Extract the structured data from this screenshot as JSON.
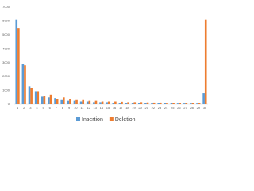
{
  "chart_data": {
    "type": "bar",
    "categories": [
      1,
      2,
      3,
      4,
      5,
      6,
      7,
      8,
      9,
      10,
      11,
      12,
      13,
      14,
      15,
      16,
      17,
      18,
      19,
      20,
      21,
      22,
      23,
      24,
      25,
      26,
      27,
      28,
      29,
      30
    ],
    "series": [
      {
        "name": "Insertion",
        "color": "#5b9bd5",
        "values": [
          6100,
          2900,
          1300,
          950,
          550,
          500,
          450,
          300,
          250,
          250,
          200,
          200,
          150,
          150,
          150,
          100,
          100,
          100,
          100,
          80,
          80,
          80,
          60,
          60,
          60,
          50,
          50,
          50,
          50,
          800
        ]
      },
      {
        "name": "Deletion",
        "color": "#ed7d31",
        "values": [
          5500,
          2800,
          1200,
          950,
          600,
          700,
          350,
          500,
          350,
          300,
          300,
          250,
          250,
          200,
          200,
          200,
          180,
          150,
          150,
          150,
          130,
          120,
          120,
          100,
          100,
          100,
          90,
          80,
          60,
          6100
        ]
      }
    ],
    "ylim": [
      0,
      7000
    ],
    "yticks": [
      0,
      1000,
      2000,
      3000,
      4000,
      5000,
      6000,
      7000
    ]
  }
}
